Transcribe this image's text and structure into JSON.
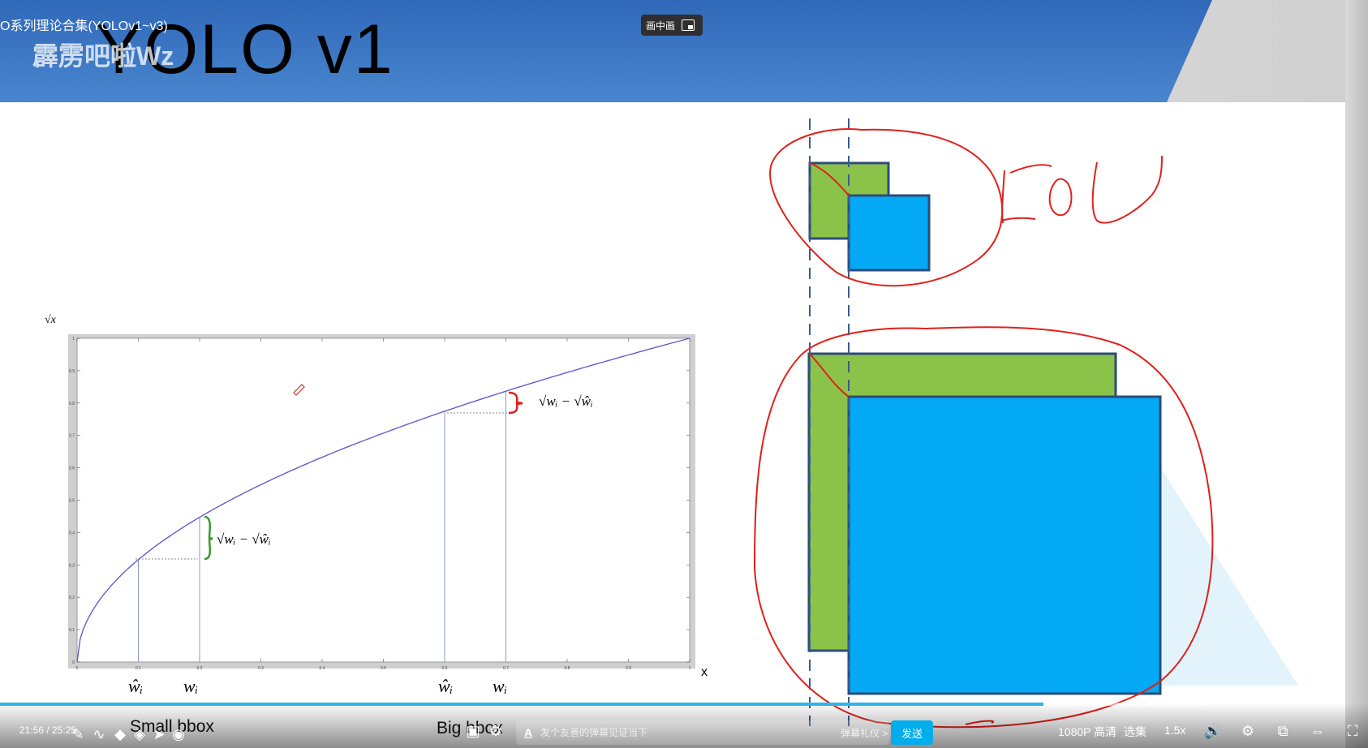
{
  "window": {
    "video_title": "O系列理论合集(YOLOv1~v3)",
    "pip_label": "画中画",
    "watermark": "霹雳吧啦Wz"
  },
  "slide": {
    "title": "YOLO v1",
    "plot": {
      "y_label": "√x",
      "x_label": "x",
      "y_ticks": [
        "0",
        "0.1",
        "0.2",
        "0.3",
        "0.4",
        "0.5",
        "0.6",
        "0.7",
        "0.8",
        "0.9",
        "1"
      ],
      "x_ticks": [
        "0",
        "0.1",
        "0.2",
        "0.3",
        "0.4",
        "0.5",
        "0.6",
        "0.7",
        "0.8",
        "0.9",
        "1"
      ],
      "small_bracket_label": "√wᵢ − √ŵᵢ",
      "big_bracket_label": "√wᵢ − √ŵᵢ",
      "small_what_label": "ŵᵢ",
      "small_w_label": "wᵢ",
      "big_what_label": "ŵᵢ",
      "big_w_label": "wᵢ",
      "small_caption": "Small bbox",
      "big_caption": "Big bbox",
      "curve_color": "#6a5acd",
      "small_bracket_color": "#3a9a2f",
      "big_bracket_color": "#e02020"
    },
    "annotation": {
      "iou_text": "IoU",
      "ink_color": "#e0201b",
      "green": "#8bc34a",
      "blue": "#03a9f4"
    }
  },
  "chart_data": {
    "type": "line",
    "title": "",
    "xlabel": "x",
    "ylabel": "√x",
    "xlim": [
      0,
      1
    ],
    "ylim": [
      0,
      1
    ],
    "x": [
      0,
      0.1,
      0.2,
      0.3,
      0.4,
      0.5,
      0.6,
      0.7,
      0.8,
      0.9,
      1.0
    ],
    "series": [
      {
        "values": [
          0,
          0.316,
          0.447,
          0.548,
          0.632,
          0.707,
          0.775,
          0.837,
          0.894,
          0.949,
          1.0
        ]
      }
    ],
    "markers": {
      "small_what_x": 0.1,
      "small_w_x": 0.2,
      "big_what_x": 0.6,
      "big_w_x": 0.7
    }
  },
  "player": {
    "time_current": "21:56",
    "time_total": "25:25",
    "progress": 0.863,
    "danmaku_placeholder": "发个友善的弹幕见证当下",
    "etiquette": "弹幕礼仪 >",
    "send": "发送",
    "quality": "1080P 高清",
    "episodes": "选集",
    "speed": "1.5x"
  }
}
